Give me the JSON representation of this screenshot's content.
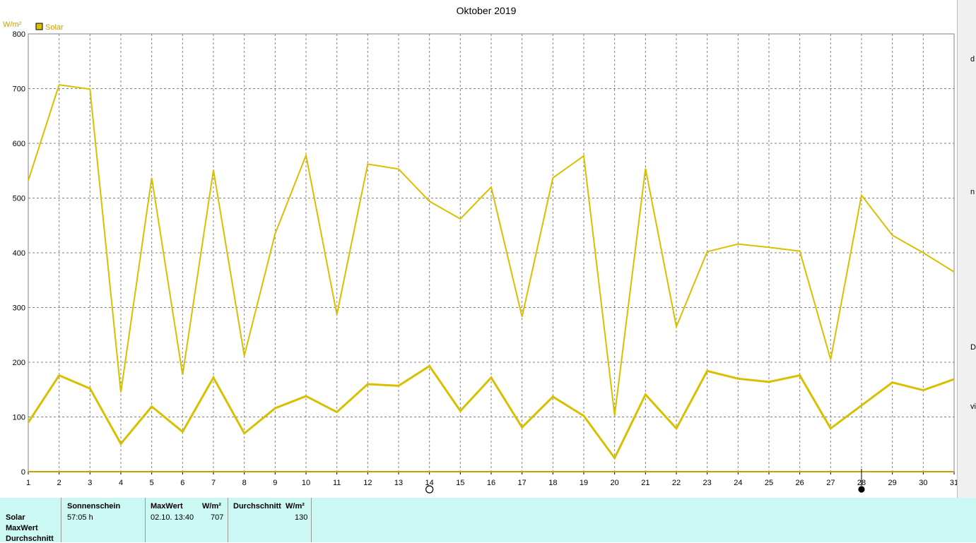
{
  "chart_data": {
    "type": "line",
    "title": "Oktober 2019",
    "ylabel": "W/m²",
    "xlabel": "",
    "ylim": [
      0,
      800
    ],
    "yticks": [
      0,
      100,
      200,
      300,
      400,
      500,
      600,
      700,
      800
    ],
    "x": [
      1,
      2,
      3,
      4,
      5,
      6,
      7,
      8,
      9,
      10,
      11,
      12,
      13,
      14,
      15,
      16,
      17,
      18,
      19,
      20,
      21,
      22,
      23,
      24,
      25,
      26,
      27,
      28,
      29,
      30,
      31
    ],
    "grid": true,
    "legend": {
      "placement": "top-left",
      "entries": [
        "Solar"
      ]
    },
    "series": [
      {
        "name": "Solar",
        "color": "#d8c000",
        "values": [
          532,
          707,
          699,
          145,
          537,
          177,
          551,
          212,
          435,
          578,
          287,
          562,
          553,
          494,
          462,
          520,
          283,
          537,
          577,
          103,
          554,
          265,
          402,
          416,
          410,
          403,
          205,
          505,
          432,
          400,
          365
        ]
      },
      {
        "name": "",
        "color": "#d8c000",
        "values": [
          90,
          176,
          152,
          51,
          119,
          73,
          172,
          70,
          116,
          138,
          109,
          160,
          157,
          193,
          111,
          172,
          81,
          137,
          102,
          25,
          141,
          79,
          184,
          170,
          164,
          176,
          79,
          121,
          163,
          149,
          169
        ]
      }
    ],
    "markers": [
      {
        "x": 14,
        "symbol": "open-circle",
        "color": "#000000"
      },
      {
        "x": 28,
        "symbol": "filled-circle",
        "color": "#000000"
      }
    ]
  },
  "stats": {
    "row_labels": [
      "Solar",
      "MaxWert",
      "Durchschnitt"
    ],
    "sonnenschein": {
      "header": "Sonnenschein",
      "value": "57:05 h"
    },
    "maxwert": {
      "header": "MaxWert",
      "unit": "W/m²",
      "datetime": "02.10.  13:40",
      "value": "707"
    },
    "durchschnitt": {
      "header": "Durchschnitt",
      "unit": "W/m²",
      "value": "130"
    }
  },
  "right_edge": {
    "glyphs": [
      "d",
      "n",
      "D",
      "vi"
    ]
  }
}
